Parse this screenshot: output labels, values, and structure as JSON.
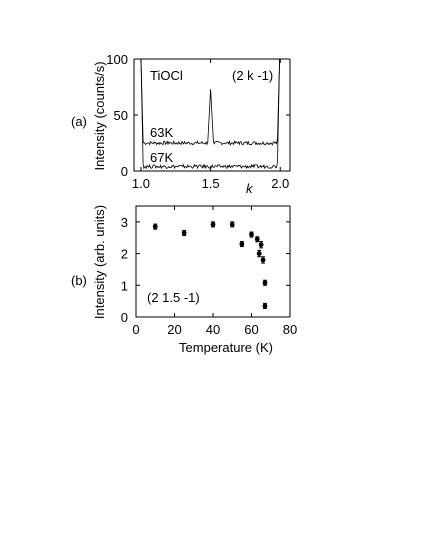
{
  "chart_data": [
    {
      "panel": "(a)",
      "type": "line",
      "sample": "TiOCl",
      "reflection": "(2 k -1)",
      "ylabel": "Intensity (counts/s)",
      "xlabel": "k",
      "xlim": [
        0.95,
        2.07
      ],
      "ylim": [
        0,
        100
      ],
      "x_ticks": [
        "1.0",
        "1.5",
        "2.0"
      ],
      "y_ticks": [
        "0",
        "50",
        "100"
      ],
      "grid": false,
      "series": [
        {
          "name": "63K",
          "baseline": 25,
          "x": [
            1.0,
            1.015,
            1.05,
            1.1,
            1.2,
            1.3,
            1.4,
            1.48,
            1.5,
            1.52,
            1.6,
            1.7,
            1.8,
            1.9,
            1.95,
            1.98,
            1.995,
            2.0
          ],
          "values": [
            100,
            27,
            25,
            25,
            26,
            25,
            25,
            26,
            73,
            26,
            25,
            26,
            25,
            25,
            26,
            29,
            100,
            100
          ]
        },
        {
          "name": "67K",
          "baseline": 4,
          "x": [
            1.0,
            1.015,
            1.05,
            1.1,
            1.2,
            1.3,
            1.4,
            1.5,
            1.6,
            1.7,
            1.8,
            1.9,
            1.95,
            1.98,
            1.995,
            2.0
          ],
          "values": [
            100,
            6,
            4,
            5,
            4,
            4,
            5,
            4,
            4,
            5,
            4,
            4,
            5,
            8,
            100,
            100
          ]
        }
      ]
    },
    {
      "panel": "(b)",
      "type": "scatter",
      "reflection": "(2 1.5 -1)",
      "xlabel": "Temperature (K)",
      "ylabel": "Intensity (arb. units)",
      "xlim": [
        0,
        80
      ],
      "ylim": [
        0,
        3.5
      ],
      "x_ticks": [
        "0",
        "20",
        "40",
        "60",
        "80"
      ],
      "y_ticks": [
        "0",
        "1",
        "2",
        "3"
      ],
      "grid": false,
      "points": [
        {
          "x": 10,
          "y": 2.85,
          "err": 0.08
        },
        {
          "x": 25,
          "y": 2.65,
          "err": 0.08
        },
        {
          "x": 40,
          "y": 2.92,
          "err": 0.08
        },
        {
          "x": 50,
          "y": 2.92,
          "err": 0.08
        },
        {
          "x": 55,
          "y": 2.3,
          "err": 0.08
        },
        {
          "x": 60,
          "y": 2.6,
          "err": 0.08
        },
        {
          "x": 63,
          "y": 2.45,
          "err": 0.08
        },
        {
          "x": 64,
          "y": 2.0,
          "err": 0.1
        },
        {
          "x": 65,
          "y": 2.28,
          "err": 0.1
        },
        {
          "x": 66,
          "y": 1.8,
          "err": 0.1
        },
        {
          "x": 67,
          "y": 1.08,
          "err": 0.08
        },
        {
          "x": 67,
          "y": 0.35,
          "err": 0.08
        }
      ]
    }
  ]
}
